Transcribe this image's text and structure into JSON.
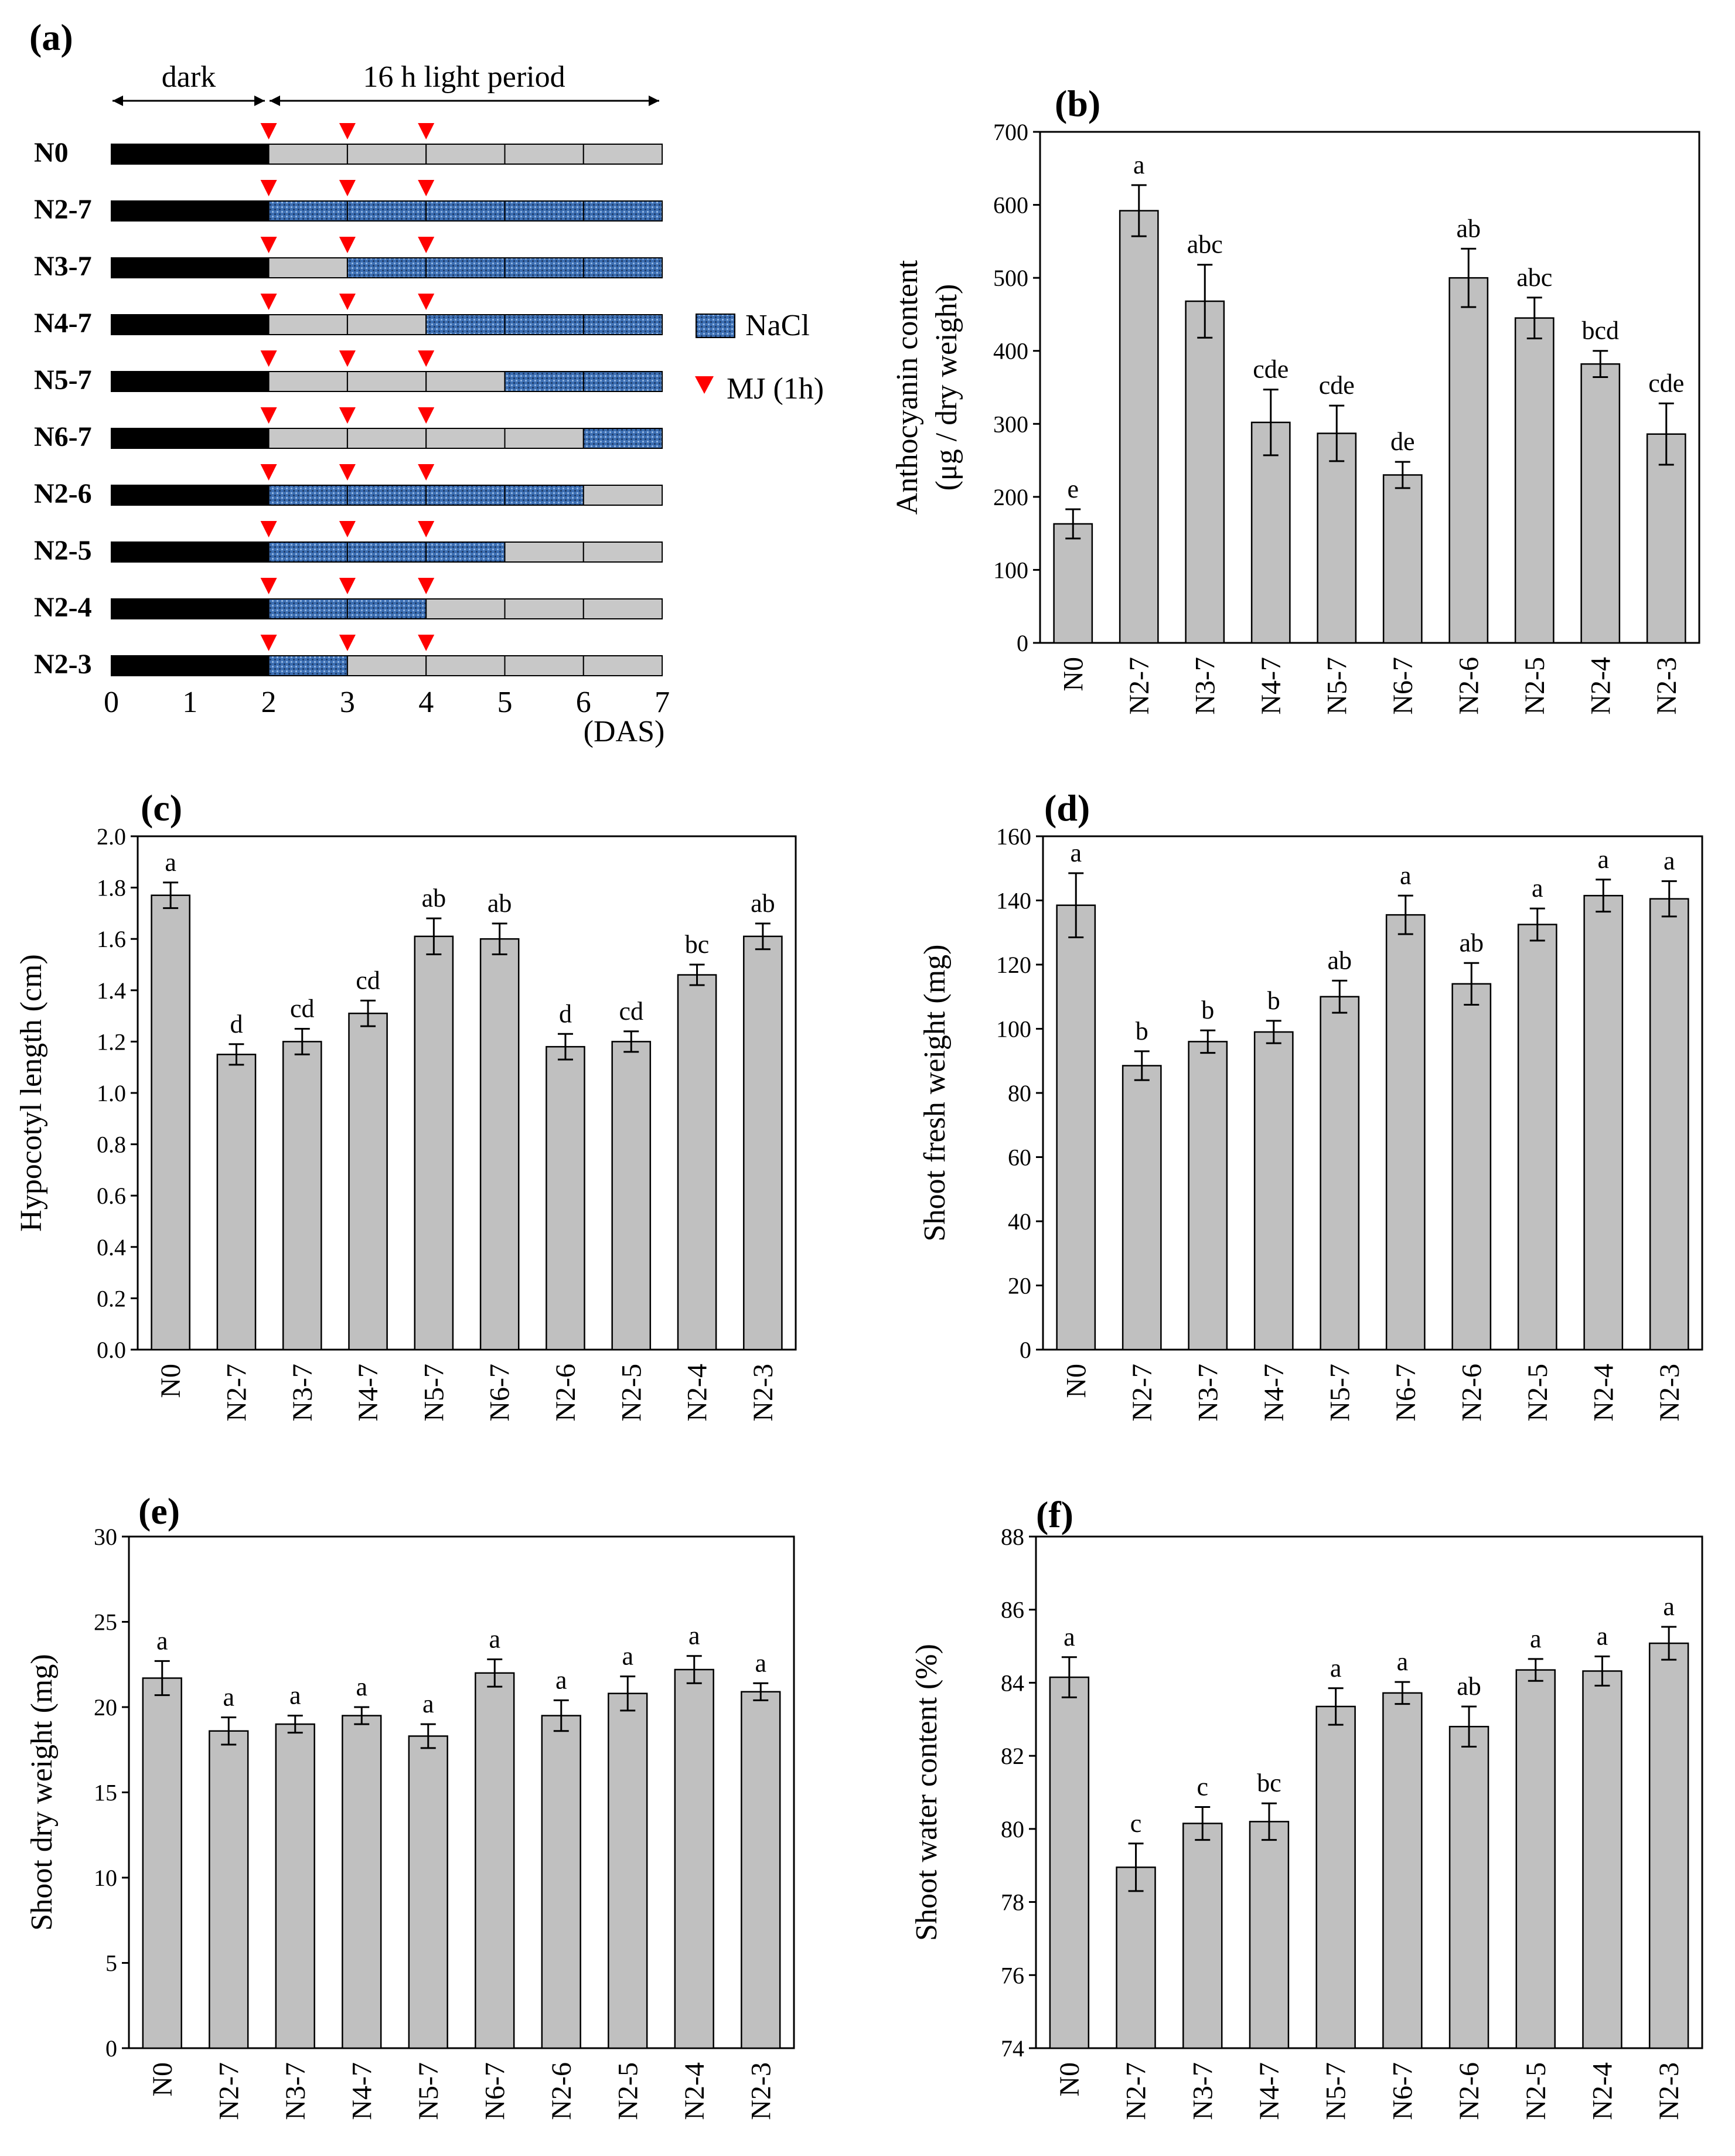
{
  "figure_labels": {
    "a": "(a)",
    "b": "(b)",
    "c": "(c)",
    "d": "(d)",
    "e": "(e)",
    "f": "(f)"
  },
  "timeline": {
    "dark_label": "dark",
    "light_label": "16 h light period",
    "rows": [
      {
        "name": "N0",
        "salt_from": null,
        "salt_to": null
      },
      {
        "name": "N2-7",
        "salt_from": 2,
        "salt_to": 7
      },
      {
        "name": "N3-7",
        "salt_from": 3,
        "salt_to": 7
      },
      {
        "name": "N4-7",
        "salt_from": 4,
        "salt_to": 7
      },
      {
        "name": "N5-7",
        "salt_from": 5,
        "salt_to": 7
      },
      {
        "name": "N6-7",
        "salt_from": 6,
        "salt_to": 7
      },
      {
        "name": "N2-6",
        "salt_from": 2,
        "salt_to": 6
      },
      {
        "name": "N2-5",
        "salt_from": 2,
        "salt_to": 5
      },
      {
        "name": "N2-4",
        "salt_from": 2,
        "salt_to": 4
      },
      {
        "name": "N2-3",
        "salt_from": 2,
        "salt_to": 3
      }
    ],
    "ticks": [
      "0",
      "1",
      "2",
      "3",
      "4",
      "5",
      "6",
      "7"
    ],
    "mj_days": [
      2,
      3,
      4
    ],
    "dark_until": 2,
    "axis_unit": "(DAS)",
    "legend": {
      "nacl": "NaCl",
      "mj": "MJ (1h)"
    },
    "colors": {
      "dark": "#000000",
      "light": "#c8c8c8",
      "nacl": "#3d6fb3",
      "mj": "#ff0000"
    }
  },
  "chart_data": [
    {
      "id": "b",
      "type": "bar",
      "categories": [
        "N0",
        "N2-7",
        "N3-7",
        "N4-7",
        "N5-7",
        "N6-7",
        "N2-6",
        "N2-5",
        "N2-4",
        "N2-3"
      ],
      "values": [
        163,
        592,
        468,
        302,
        287,
        230,
        500,
        445,
        382,
        286
      ],
      "errors": [
        20,
        35,
        50,
        45,
        38,
        18,
        40,
        28,
        18,
        42
      ],
      "letters": [
        "e",
        "a",
        "abc",
        "cde",
        "cde",
        "de",
        "ab",
        "abc",
        "bcd",
        "cde"
      ],
      "ylabel": "Anthocyanin content",
      "ylabel2": "(μg / dry weight)",
      "ylim": [
        0,
        700
      ],
      "yticks": [
        "0",
        "100",
        "200",
        "300",
        "400",
        "500",
        "600",
        "700"
      ]
    },
    {
      "id": "c",
      "type": "bar",
      "categories": [
        "N0",
        "N2-7",
        "N3-7",
        "N4-7",
        "N5-7",
        "N6-7",
        "N2-6",
        "N2-5",
        "N2-4",
        "N2-3"
      ],
      "values": [
        1.77,
        1.15,
        1.2,
        1.31,
        1.61,
        1.6,
        1.18,
        1.2,
        1.46,
        1.61
      ],
      "errors": [
        0.05,
        0.04,
        0.05,
        0.05,
        0.07,
        0.06,
        0.05,
        0.04,
        0.04,
        0.05
      ],
      "letters": [
        "a",
        "d",
        "cd",
        "cd",
        "ab",
        "ab",
        "d",
        "cd",
        "bc",
        "ab"
      ],
      "ylabel": "Hypocotyl length (cm)",
      "ylim": [
        0,
        2.0
      ],
      "yticks": [
        "0.0",
        "0.2",
        "0.4",
        "0.6",
        "0.8",
        "1.0",
        "1.2",
        "1.4",
        "1.6",
        "1.8",
        "2.0"
      ]
    },
    {
      "id": "d",
      "type": "bar",
      "categories": [
        "N0",
        "N2-7",
        "N3-7",
        "N4-7",
        "N5-7",
        "N6-7",
        "N2-6",
        "N2-5",
        "N2-4",
        "N2-3"
      ],
      "values": [
        138.5,
        88.5,
        96,
        99,
        110,
        135.5,
        114,
        132.5,
        141.5,
        140.5
      ],
      "errors": [
        10,
        4.5,
        3.5,
        3.5,
        5,
        6,
        6.5,
        5,
        5,
        5.5
      ],
      "letters": [
        "a",
        "b",
        "b",
        "b",
        "ab",
        "a",
        "ab",
        "a",
        "a",
        "a"
      ],
      "ylabel": "Shoot fresh weight (mg)",
      "ylim": [
        0,
        160
      ],
      "yticks": [
        "0",
        "20",
        "40",
        "60",
        "80",
        "100",
        "120",
        "140",
        "160"
      ]
    },
    {
      "id": "e",
      "type": "bar",
      "categories": [
        "N0",
        "N2-7",
        "N3-7",
        "N4-7",
        "N5-7",
        "N6-7",
        "N2-6",
        "N2-5",
        "N2-4",
        "N2-3"
      ],
      "values": [
        21.7,
        18.6,
        19.0,
        19.5,
        18.3,
        22.0,
        19.5,
        20.8,
        22.2,
        20.9
      ],
      "errors": [
        1.0,
        0.8,
        0.5,
        0.5,
        0.7,
        0.8,
        0.9,
        1.0,
        0.8,
        0.5
      ],
      "letters": [
        "a",
        "a",
        "a",
        "a",
        "a",
        "a",
        "a",
        "a",
        "a",
        "a"
      ],
      "ylabel": "Shoot dry weight (mg)",
      "ylim": [
        0,
        30
      ],
      "yticks": [
        "0",
        "5",
        "10",
        "15",
        "20",
        "25",
        "30"
      ]
    },
    {
      "id": "f",
      "type": "bar",
      "categories": [
        "N0",
        "N2-7",
        "N3-7",
        "N4-7",
        "N5-7",
        "N6-7",
        "N2-6",
        "N2-5",
        "N2-4",
        "N2-3"
      ],
      "values": [
        84.15,
        78.95,
        80.15,
        80.2,
        83.35,
        83.72,
        82.8,
        84.35,
        84.32,
        85.08
      ],
      "errors": [
        0.55,
        0.65,
        0.45,
        0.5,
        0.5,
        0.3,
        0.55,
        0.3,
        0.4,
        0.45
      ],
      "letters": [
        "a",
        "c",
        "c",
        "bc",
        "a",
        "a",
        "ab",
        "a",
        "a",
        "a"
      ],
      "ylabel": "Shoot water content (%)",
      "ylim": [
        74,
        88
      ],
      "yticks": [
        "74",
        "76",
        "78",
        "80",
        "82",
        "84",
        "86",
        "88"
      ]
    }
  ]
}
